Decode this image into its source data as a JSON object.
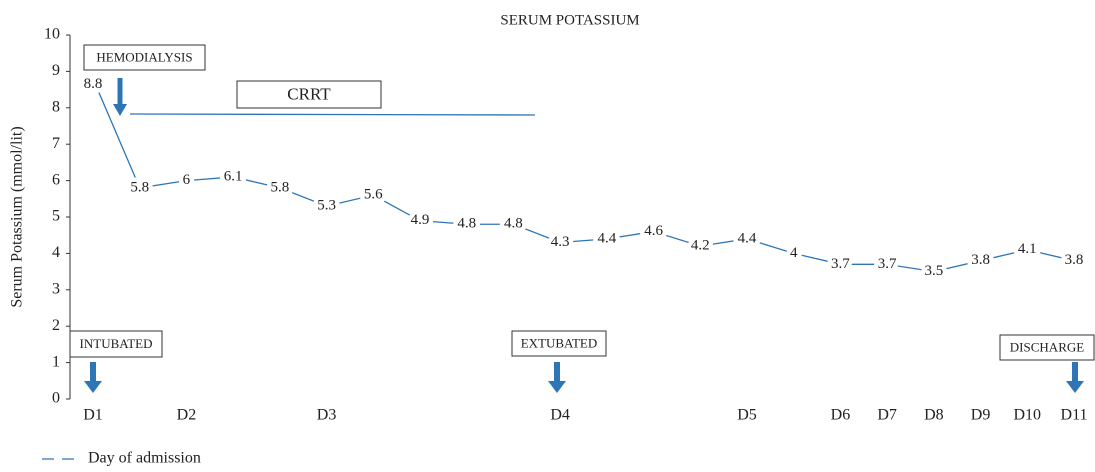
{
  "chart_data": {
    "type": "line",
    "title": "SERUM POTASSIUM",
    "y_label": "Serum Potassium (mmol/lit)",
    "categories": [
      "D1",
      null,
      "D2",
      null,
      null,
      "D3",
      null,
      null,
      null,
      null,
      "D4",
      null,
      null,
      null,
      "D5",
      null,
      "D6",
      "D7",
      "D8",
      "D9",
      "D10",
      "D11"
    ],
    "series": [
      {
        "name": "Day of admission",
        "color": "#2e75b6",
        "values": [
          8.8,
          5.8,
          6,
          6.1,
          5.8,
          5.3,
          5.6,
          4.9,
          4.8,
          4.8,
          4.3,
          4.4,
          4.6,
          4.2,
          4.4,
          4,
          3.7,
          3.7,
          3.5,
          3.8,
          4.1,
          3.8
        ]
      }
    ],
    "ylim": [
      0,
      10
    ],
    "yticks": [
      0,
      1,
      2,
      3,
      4,
      5,
      6,
      7,
      8,
      9,
      10
    ],
    "grid": false,
    "legend": "bottom-left",
    "annotations": [
      "HEMODIALYSIS",
      "CRRT",
      "INTUBATED",
      "EXTUBATED",
      "DISCHARGE"
    ]
  }
}
